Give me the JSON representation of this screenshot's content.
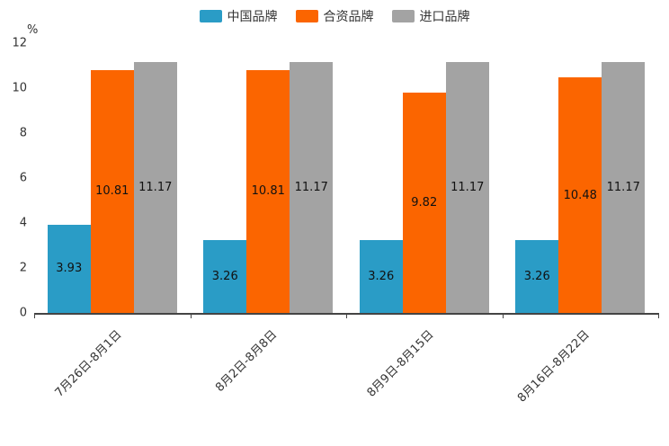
{
  "chart_data": {
    "type": "bar",
    "title": "",
    "xlabel": "",
    "ylabel": "%",
    "ylim": [
      0,
      12
    ],
    "yticks": [
      0,
      2,
      4,
      6,
      8,
      10,
      12
    ],
    "grid": false,
    "legend_position": "top-center",
    "categories": [
      "7月26日-8月1日",
      "8月2日-8月8日",
      "8月9日-8月15日",
      "8月16日-8月22日"
    ],
    "series": [
      {
        "name": "中国品牌",
        "color": "#2A9CC6",
        "values": [
          3.93,
          3.26,
          3.26,
          3.26
        ]
      },
      {
        "name": "合资品牌",
        "color": "#FB6500",
        "values": [
          10.81,
          10.81,
          9.82,
          10.48
        ]
      },
      {
        "name": "进口品牌",
        "color": "#A3A3A3",
        "values": [
          11.17,
          11.17,
          11.17,
          11.17
        ]
      }
    ]
  }
}
